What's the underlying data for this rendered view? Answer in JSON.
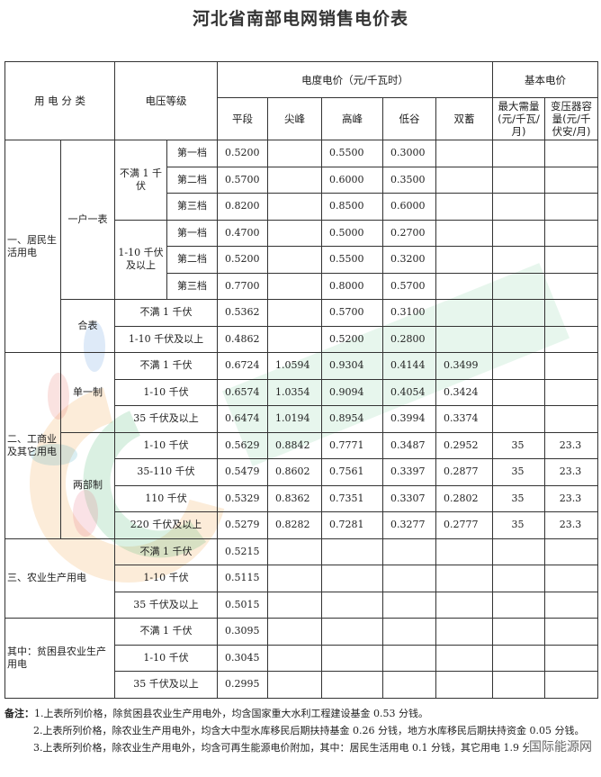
{
  "title": "河北省南部电网销售电价表",
  "header": {
    "category": "用 电 分 类",
    "voltage": "电压等级",
    "energy_price": "电度电价（元/千瓦时）",
    "basic_price": "基本电价",
    "columns": [
      "平段",
      "尖峰",
      "高峰",
      "低谷",
      "双蓄"
    ],
    "basic_columns": [
      "最大需量(元/千瓦/月)",
      "变压器容量(元/千伏安/月)"
    ]
  },
  "sections": [
    {
      "label": "一、居民生活用电",
      "groups": [
        {
          "label": "一户一表",
          "voltages": [
            {
              "label": "不满 1 千伏",
              "tiers": [
                {
                  "label": "第一档",
                  "prices": [
                    "0.5200",
                    "",
                    "0.5500",
                    "0.3000",
                    "",
                    "",
                    ""
                  ]
                },
                {
                  "label": "第二档",
                  "prices": [
                    "0.5700",
                    "",
                    "0.6000",
                    "0.3500",
                    "",
                    "",
                    ""
                  ]
                },
                {
                  "label": "第三档",
                  "prices": [
                    "0.8200",
                    "",
                    "0.8500",
                    "0.6000",
                    "",
                    "",
                    ""
                  ]
                }
              ]
            },
            {
              "label": "1-10 千伏及以上",
              "tiers": [
                {
                  "label": "第一档",
                  "prices": [
                    "0.4700",
                    "",
                    "0.5000",
                    "0.2700",
                    "",
                    "",
                    ""
                  ]
                },
                {
                  "label": "第二档",
                  "prices": [
                    "0.5200",
                    "",
                    "0.5500",
                    "0.3200",
                    "",
                    "",
                    ""
                  ]
                },
                {
                  "label": "第三档",
                  "prices": [
                    "0.7700",
                    "",
                    "0.8000",
                    "0.5700",
                    "",
                    "",
                    ""
                  ]
                }
              ]
            }
          ]
        },
        {
          "label": "合表",
          "voltages": [
            {
              "label": "不满 1 千伏",
              "prices": [
                "0.5362",
                "",
                "0.5700",
                "0.3100",
                "",
                "",
                ""
              ]
            },
            {
              "label": "1-10 千伏及以上",
              "prices": [
                "0.4862",
                "",
                "0.5200",
                "0.2800",
                "",
                "",
                ""
              ]
            }
          ]
        }
      ]
    },
    {
      "label": "二、工商业及其它用电",
      "groups": [
        {
          "label": "单一制",
          "voltages": [
            {
              "label": "不满 1 千伏",
              "prices": [
                "0.6724",
                "1.0594",
                "0.9304",
                "0.4144",
                "0.3499",
                "",
                ""
              ]
            },
            {
              "label": "1-10 千伏",
              "prices": [
                "0.6574",
                "1.0354",
                "0.9094",
                "0.4054",
                "0.3424",
                "",
                ""
              ]
            },
            {
              "label": "35 千伏及以上",
              "prices": [
                "0.6474",
                "1.0194",
                "0.8954",
                "0.3994",
                "0.3374",
                "",
                ""
              ]
            }
          ]
        },
        {
          "label": "两部制",
          "voltages": [
            {
              "label": "1-10 千伏",
              "prices": [
                "0.5629",
                "0.8842",
                "0.7771",
                "0.3487",
                "0.2952",
                "35",
                "23.3"
              ]
            },
            {
              "label": "35-110 千伏",
              "prices": [
                "0.5479",
                "0.8602",
                "0.7561",
                "0.3397",
                "0.2877",
                "35",
                "23.3"
              ]
            },
            {
              "label": "110 千伏",
              "prices": [
                "0.5329",
                "0.8362",
                "0.7351",
                "0.3307",
                "0.2802",
                "35",
                "23.3"
              ]
            },
            {
              "label": "220 千伏及以上",
              "prices": [
                "0.5279",
                "0.8282",
                "0.7281",
                "0.3277",
                "0.2777",
                "35",
                "23.3"
              ]
            }
          ]
        }
      ]
    },
    {
      "label": "三、农业生产用电",
      "groups": [
        {
          "label": null,
          "voltages": [
            {
              "label": "不满 1 千伏",
              "prices": [
                "0.5215",
                "",
                "",
                "",
                "",
                "",
                ""
              ]
            },
            {
              "label": "1-10 千伏",
              "prices": [
                "0.5115",
                "",
                "",
                "",
                "",
                "",
                ""
              ]
            },
            {
              "label": "35 千伏及以上",
              "prices": [
                "0.5015",
                "",
                "",
                "",
                "",
                "",
                ""
              ]
            }
          ]
        }
      ]
    },
    {
      "label": "其中：贫困县农业生产用电",
      "groups": [
        {
          "label": null,
          "voltages": [
            {
              "label": "不满 1 千伏",
              "prices": [
                "0.3095",
                "",
                "",
                "",
                "",
                "",
                ""
              ]
            },
            {
              "label": "1-10 千伏",
              "prices": [
                "0.3045",
                "",
                "",
                "",
                "",
                "",
                ""
              ]
            },
            {
              "label": "35 千伏及以上",
              "prices": [
                "0.2995",
                "",
                "",
                "",
                "",
                "",
                ""
              ]
            }
          ]
        }
      ]
    }
  ],
  "notes": {
    "label": "备注：",
    "items": [
      "1.上表所列价格，除贫困县农业生产用电外，均含国家重大水利工程建设基金 0.53 分钱。",
      "2.上表所列价格，除农业生产用电外，均含大中型水库移民后期扶持基金 0.26 分钱，地方水库移民后期扶持资金 0.05 分钱。",
      "3.上表所列价格，除农业生产用电外，均含可再生能源电价附加，其中：居民生活用电 0.1 分钱，其它用电 1.9 分钱。"
    ]
  },
  "watermark": "国际能源网"
}
